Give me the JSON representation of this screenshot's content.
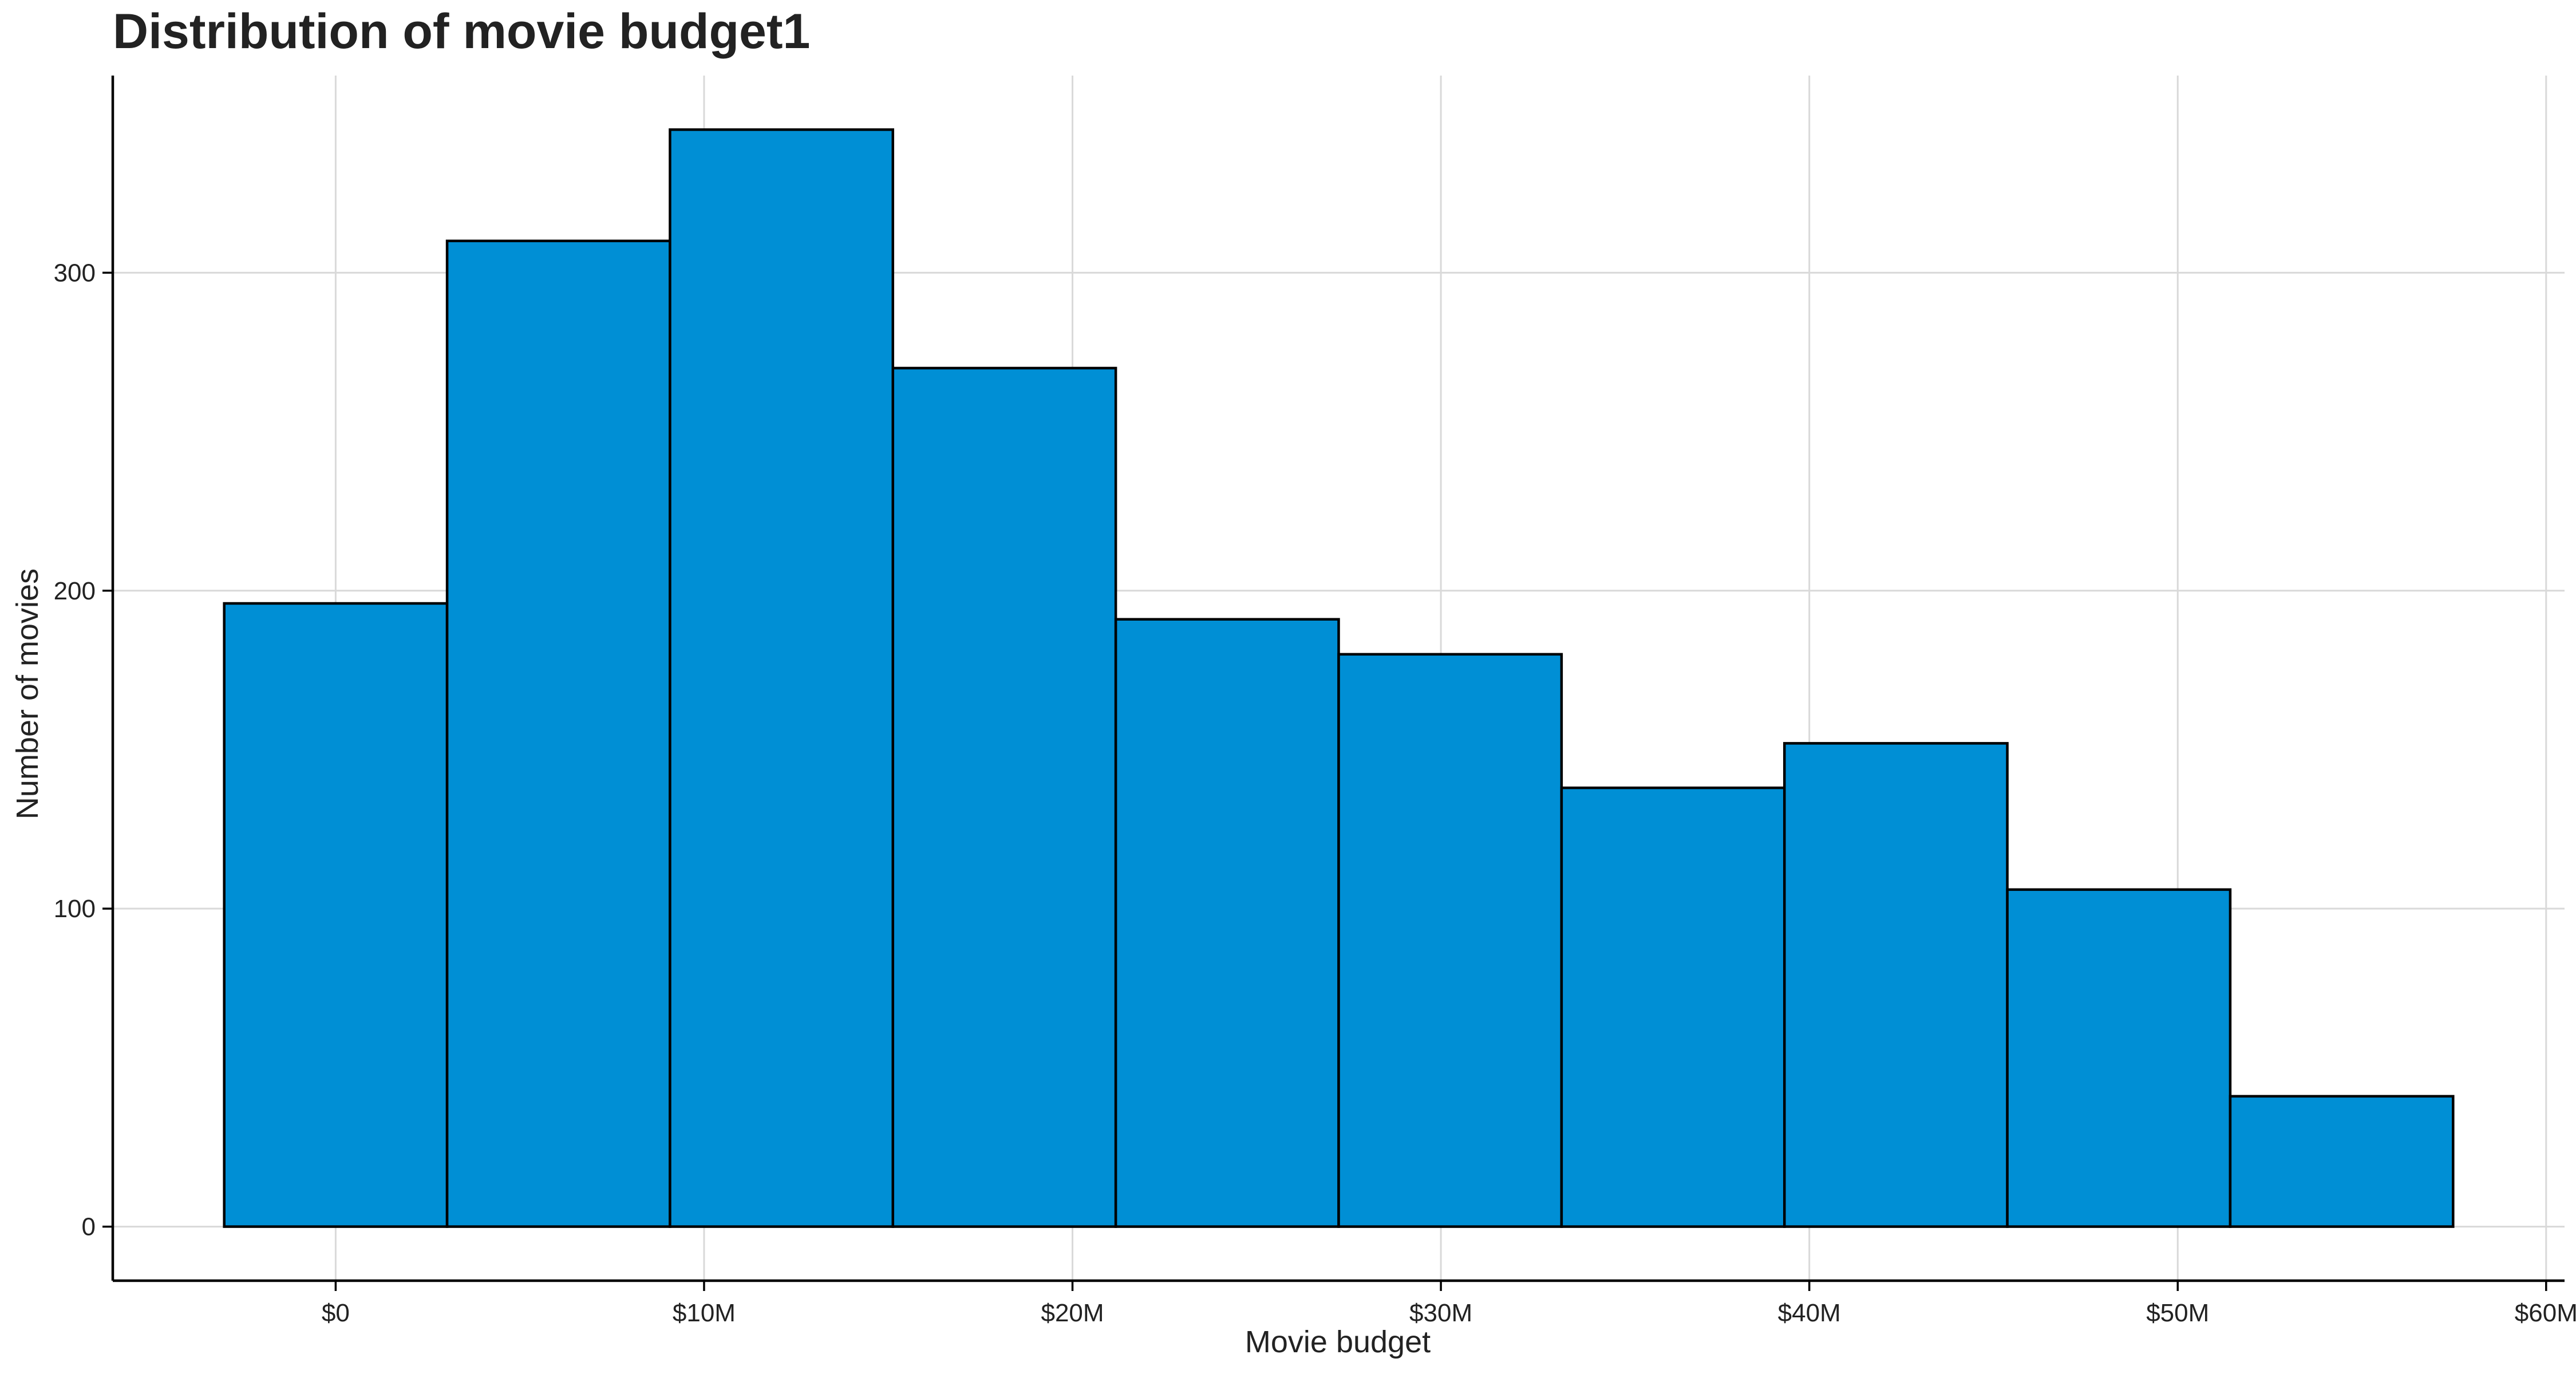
{
  "chart_data": {
    "type": "bar",
    "title": "Distribution of movie budget1",
    "xlabel": "Movie budget",
    "ylabel": "Number of movies",
    "bin_width_millions": 6.05,
    "bins": [
      {
        "x0": -3.025,
        "x1": 3.025,
        "count": 196
      },
      {
        "x0": 3.025,
        "x1": 9.075,
        "count": 310
      },
      {
        "x0": 9.075,
        "x1": 15.125,
        "count": 345
      },
      {
        "x0": 15.125,
        "x1": 21.175,
        "count": 270
      },
      {
        "x0": 21.175,
        "x1": 27.225,
        "count": 191
      },
      {
        "x0": 27.225,
        "x1": 33.275,
        "count": 180
      },
      {
        "x0": 33.275,
        "x1": 39.325,
        "count": 138
      },
      {
        "x0": 39.325,
        "x1": 45.375,
        "count": 152
      },
      {
        "x0": 45.375,
        "x1": 51.425,
        "count": 106
      },
      {
        "x0": 51.425,
        "x1": 57.475,
        "count": 41
      }
    ],
    "xlim_millions": [
      -6.05,
      60.5
    ],
    "ylim": [
      -17,
      362
    ],
    "x_ticks": [
      {
        "value": 0,
        "label": "$0"
      },
      {
        "value": 10,
        "label": "$10M"
      },
      {
        "value": 20,
        "label": "$20M"
      },
      {
        "value": 30,
        "label": "$30M"
      },
      {
        "value": 40,
        "label": "$40M"
      },
      {
        "value": 50,
        "label": "$50M"
      },
      {
        "value": 60,
        "label": "$60M"
      }
    ],
    "y_ticks": [
      {
        "value": 0,
        "label": "0"
      },
      {
        "value": 100,
        "label": "100"
      },
      {
        "value": 200,
        "label": "200"
      },
      {
        "value": 300,
        "label": "300"
      }
    ],
    "grid": true,
    "legend": "none",
    "colors": {
      "bar_fill": "#008FD5",
      "bar_stroke": "#000000",
      "grid": "#D9D9D9",
      "axis": "#000000",
      "text": "#222222"
    }
  }
}
